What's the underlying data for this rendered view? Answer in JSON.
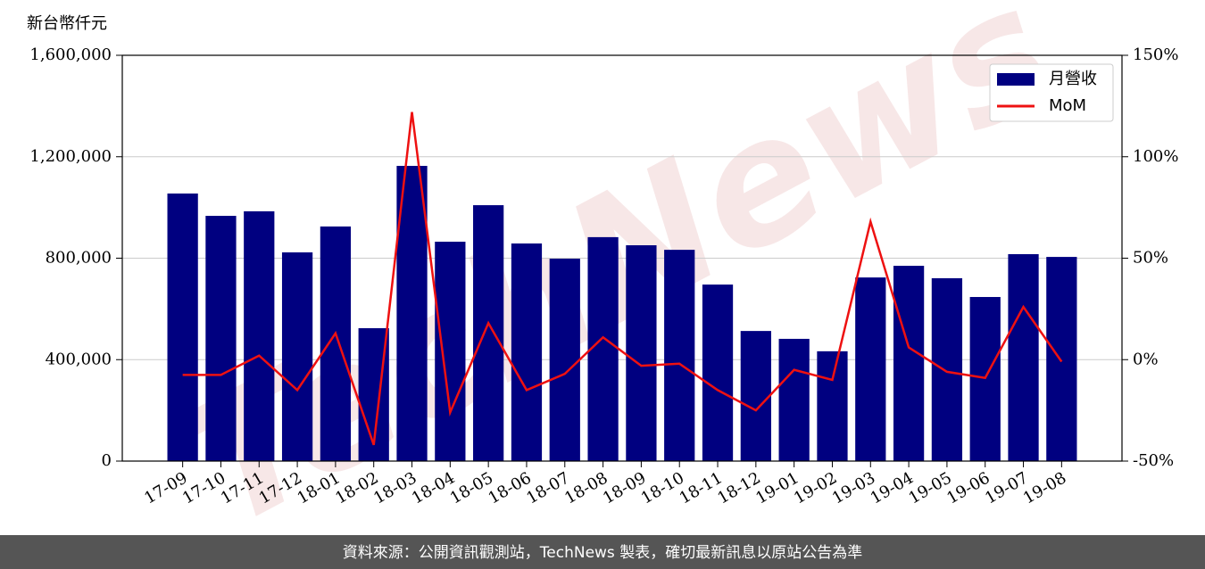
{
  "chart_data": {
    "type": "bar_line",
    "y_label": "新台幣仟元",
    "watermark": "TechNews",
    "footer": "資料來源：公開資訊觀測站，TechNews 製表，確切最新訊息以原站公告為準",
    "categories": [
      "17-09",
      "17-10",
      "17-11",
      "17-12",
      "18-01",
      "18-02",
      "18-03",
      "18-04",
      "18-05",
      "18-06",
      "18-07",
      "18-08",
      "18-09",
      "18-10",
      "18-11",
      "18-12",
      "19-01",
      "19-02",
      "19-03",
      "19-04",
      "19-05",
      "19-06",
      "19-07",
      "19-08"
    ],
    "series": [
      {
        "name": "月營收",
        "type": "bar",
        "color": "#000080",
        "values": [
          1055000,
          967000,
          985000,
          823000,
          925000,
          524000,
          1164000,
          865000,
          1009000,
          858000,
          798000,
          883000,
          851000,
          833000,
          696000,
          513000,
          482000,
          433000,
          724000,
          770000,
          721000,
          647000,
          816000,
          805000
        ]
      },
      {
        "name": "MoM",
        "type": "line",
        "axis": "y2",
        "color": "#ee1111",
        "values": [
          -7.5,
          -7.5,
          2,
          -15,
          13,
          -42,
          122,
          -26,
          18,
          -15,
          -7,
          11,
          -3,
          -2,
          -15,
          -25,
          -5,
          -10,
          68,
          6,
          -6,
          -9,
          26,
          -1
        ]
      }
    ],
    "ylim": [
      0,
      1600000
    ],
    "yticks": [
      0,
      {
        "value": 400000,
        "label": "400,000"
      },
      {
        "value": 800000,
        "label": "800,000"
      },
      {
        "value": 1200000,
        "label": "1,200,000"
      },
      {
        "value": 1600000,
        "label": "1,600,000"
      }
    ],
    "y2lim": [
      -50,
      150
    ],
    "y2ticks": [
      {
        "value": -50,
        "label": "-50%"
      },
      {
        "value": 0,
        "label": "0%"
      },
      {
        "value": 50,
        "label": "50%"
      },
      {
        "value": 100,
        "label": "100%"
      },
      {
        "value": 150,
        "label": "150%"
      }
    ],
    "grid": true,
    "legend": "upper right"
  }
}
